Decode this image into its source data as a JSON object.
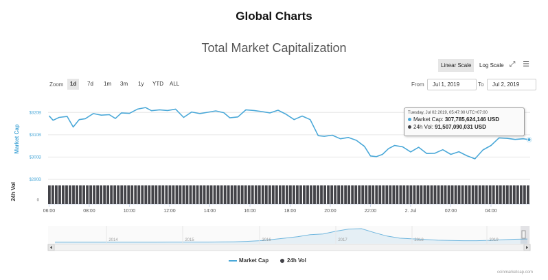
{
  "page_title": "Global Charts",
  "chart_title": "Total Market Capitalization",
  "scale_buttons": {
    "linear": "Linear Scale",
    "log": "Log Scale"
  },
  "icons": {
    "fullscreen": "expand-icon",
    "menu": "hamburger-menu-icon"
  },
  "zoom": {
    "label": "Zoom",
    "buttons": [
      "1d",
      "7d",
      "1m",
      "3m",
      "1y",
      "YTD",
      "ALL"
    ],
    "active": "1d"
  },
  "range": {
    "from_label": "From",
    "from_value": "Jul 1, 2019",
    "to_label": "To",
    "to_value": "Jul 2, 2019"
  },
  "tooltip": {
    "date": "Tuesday, Jul 02 2019, 05:47:00 UTC+07:00",
    "market_cap_label": "Market Cap:",
    "market_cap_value": "307,785,624,146 USD",
    "vol_label": "24h Vol:",
    "vol_value": "91,507,090,031 USD"
  },
  "legend": {
    "market_cap": "Market Cap",
    "vol": "24h Vol"
  },
  "credit": "coinmarketcap.com",
  "colors": {
    "market_cap": "#4aa8d8",
    "volume": "#434348",
    "navigator": "#6fb6de",
    "accent": "#4aa8d8"
  },
  "chart_data": {
    "type": "line",
    "title": "Total Market Capitalization",
    "ylabel": "Market Cap",
    "ylabel2": "24h Vol",
    "ylim": [
      290,
      325
    ],
    "y_ticks": [
      {
        "label": "$290B",
        "value": 290
      },
      {
        "label": "$300B",
        "value": 300
      },
      {
        "label": "$310B",
        "value": 310
      },
      {
        "label": "$320B",
        "value": 320
      }
    ],
    "vol_axis_label": "0",
    "x_range": [
      5.95,
      29.95
    ],
    "x_ticks": [
      {
        "label": "06:00",
        "value": 6
      },
      {
        "label": "08:00",
        "value": 8
      },
      {
        "label": "10:00",
        "value": 10
      },
      {
        "label": "12:00",
        "value": 12
      },
      {
        "label": "14:00",
        "value": 14
      },
      {
        "label": "16:00",
        "value": 16
      },
      {
        "label": "18:00",
        "value": 18
      },
      {
        "label": "20:00",
        "value": 20
      },
      {
        "label": "22:00",
        "value": 22
      },
      {
        "label": "2. Jul",
        "value": 24
      },
      {
        "label": "02:00",
        "value": 26
      },
      {
        "label": "04:00",
        "value": 28
      }
    ],
    "series": [
      {
        "name": "Market Cap",
        "x": [
          6.0,
          6.2,
          6.5,
          6.9,
          7.2,
          7.5,
          7.8,
          8.2,
          8.6,
          9.0,
          9.3,
          9.6,
          10.0,
          10.4,
          10.8,
          11.1,
          11.5,
          11.9,
          12.3,
          12.7,
          13.1,
          13.5,
          13.9,
          14.3,
          14.7,
          15.0,
          15.4,
          15.8,
          16.2,
          16.6,
          17.0,
          17.4,
          17.8,
          18.2,
          18.6,
          19.0,
          19.4,
          19.7,
          20.1,
          20.5,
          20.9,
          21.3,
          21.7,
          22.0,
          22.3,
          22.6,
          22.9,
          23.2,
          23.6,
          24.0,
          24.4,
          24.8,
          25.2,
          25.6,
          26.0,
          26.4,
          26.8,
          27.2,
          27.6,
          28.0,
          28.4,
          28.8,
          29.2,
          29.6,
          29.9
        ],
        "values": [
          318.5,
          316.5,
          317.8,
          318.2,
          313.5,
          316.8,
          317.2,
          319.5,
          318.8,
          319.0,
          317.3,
          319.8,
          319.6,
          321.5,
          322.2,
          320.8,
          321.2,
          320.9,
          321.5,
          317.8,
          320.2,
          319.5,
          320.1,
          320.7,
          319.9,
          317.6,
          318.0,
          321.2,
          320.9,
          320.4,
          319.8,
          321.0,
          319.2,
          316.8,
          318.4,
          316.8,
          309.6,
          309.3,
          309.8,
          308.2,
          308.8,
          307.5,
          304.8,
          300.5,
          300.2,
          301.2,
          303.8,
          305.2,
          304.6,
          302.3,
          304.4,
          301.6,
          301.7,
          303.3,
          301.2,
          302.4,
          300.6,
          299.2,
          303.2,
          305.2,
          308.6,
          308.4,
          307.9,
          308.2,
          307.8
        ]
      },
      {
        "name": "24h Vol",
        "values_billion": [
          91,
          91,
          91,
          91,
          91,
          91,
          91,
          91,
          91,
          91,
          91,
          91,
          91,
          91,
          91,
          91,
          91,
          91,
          91,
          91,
          91,
          91,
          91,
          91,
          91,
          91,
          91,
          91,
          91,
          91,
          91,
          91,
          91,
          91,
          91,
          91,
          91,
          91,
          91,
          91,
          91,
          91,
          91,
          91,
          91,
          91,
          91,
          91,
          91,
          91,
          91,
          91,
          91,
          91,
          91,
          91,
          91,
          91,
          91,
          91,
          91,
          91,
          91,
          91,
          91
        ]
      }
    ],
    "highlight": {
      "x": 29.9,
      "value": 307.8
    },
    "navigator": {
      "year_labels": [
        "2014",
        "2015",
        "2016",
        "2017",
        "2018",
        "2019"
      ],
      "values": [
        1,
        1,
        1,
        1,
        1,
        1,
        1,
        1,
        1.5,
        2,
        2,
        2,
        2,
        3,
        4,
        7,
        12,
        20,
        30,
        40,
        55,
        60,
        80,
        95,
        98,
        70,
        45,
        30,
        25,
        20,
        15,
        13,
        12,
        12,
        14,
        18,
        22,
        24
      ]
    }
  }
}
